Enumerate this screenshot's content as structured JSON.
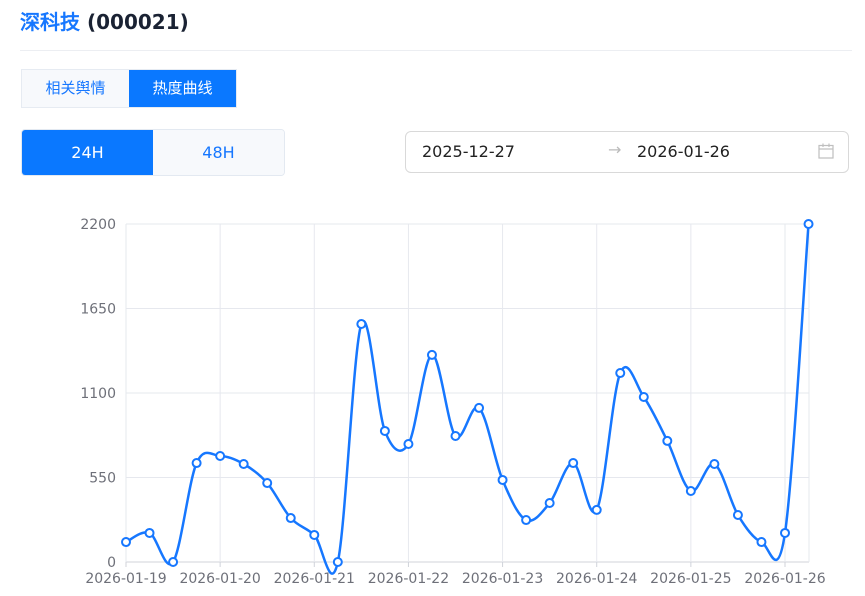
{
  "header": {
    "name": "深科技",
    "code": "(000021)"
  },
  "tabs": [
    {
      "label": "相关舆情",
      "active": false
    },
    {
      "label": "热度曲线",
      "active": true
    }
  ],
  "period": [
    {
      "label": "24H",
      "active": true
    },
    {
      "label": "48H",
      "active": false
    }
  ],
  "date_range": {
    "start": "2025-12-27",
    "separator": "→",
    "end": "2026-01-26",
    "icon": "calendar-icon"
  },
  "colors": {
    "accent": "#0a78ff",
    "line": "#1677ff"
  },
  "chart_data": {
    "type": "line",
    "smooth": true,
    "grid": true,
    "ylim": [
      0,
      2200
    ],
    "y_ticks": [
      "0",
      "550",
      "1100",
      "1650",
      "2200"
    ],
    "x_ticks": [
      "2026-01-19",
      "2026-01-20",
      "2026-01-21",
      "2026-01-22",
      "2026-01-23",
      "2026-01-24",
      "2026-01-25",
      "2026-01-26"
    ],
    "x": [
      "2026-01-19 00:00",
      "2026-01-19 06:00",
      "2026-01-19 12:00",
      "2026-01-19 18:00",
      "2026-01-20 00:00",
      "2026-01-20 06:00",
      "2026-01-20 12:00",
      "2026-01-20 18:00",
      "2026-01-21 00:00",
      "2026-01-21 06:00",
      "2026-01-21 12:00",
      "2026-01-21 18:00",
      "2026-01-22 00:00",
      "2026-01-22 06:00",
      "2026-01-22 12:00",
      "2026-01-22 18:00",
      "2026-01-23 00:00",
      "2026-01-23 06:00",
      "2026-01-23 12:00",
      "2026-01-23 18:00",
      "2026-01-24 00:00",
      "2026-01-24 06:00",
      "2026-01-24 12:00",
      "2026-01-24 18:00",
      "2026-01-25 00:00",
      "2026-01-25 06:00",
      "2026-01-25 12:00",
      "2026-01-25 18:00",
      "2026-01-26 00:00",
      "2026-01-26 06:00"
    ],
    "values": [
      130,
      189,
      0,
      644,
      690,
      638,
      514,
      286,
      176,
      0,
      1549,
      853,
      768,
      1348,
      820,
      1003,
      534,
      273,
      384,
      644,
      339,
      1230,
      1074,
      788,
      462,
      638,
      306,
      130,
      189,
      2200
    ]
  }
}
